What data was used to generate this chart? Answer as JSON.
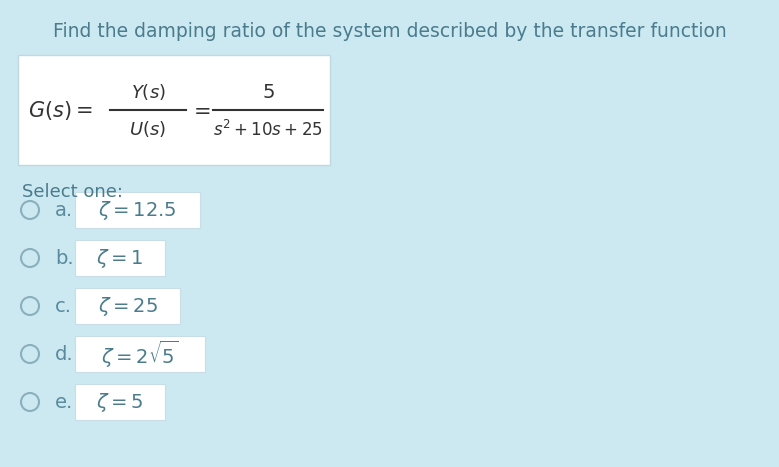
{
  "background_color": "#cce8f0",
  "title": "Find the damping ratio of the system described by the transfer function",
  "title_fontsize": 13.5,
  "title_color": "#4a7c8e",
  "select_one_text": "Select one:",
  "select_one_fontsize": 13,
  "select_one_color": "#4a7c8e",
  "formula_box_color": "#ffffff",
  "options": [
    {
      "label": "a.",
      "math": "$\\zeta = 12.5$"
    },
    {
      "label": "b.",
      "math": "$\\zeta = 1$"
    },
    {
      "label": "c.",
      "math": "$\\zeta = 25$"
    },
    {
      "label": "d.",
      "math": "$\\zeta = 2\\sqrt{5}$"
    },
    {
      "label": "e.",
      "math": "$\\zeta = 5$"
    }
  ],
  "option_fontsize": 14,
  "option_color": "#4a7c8e",
  "label_color": "#5a8a9e",
  "circle_color": "#8ab0be",
  "box_edge_color": "#c8dde5",
  "text_color_dark": "#333333"
}
